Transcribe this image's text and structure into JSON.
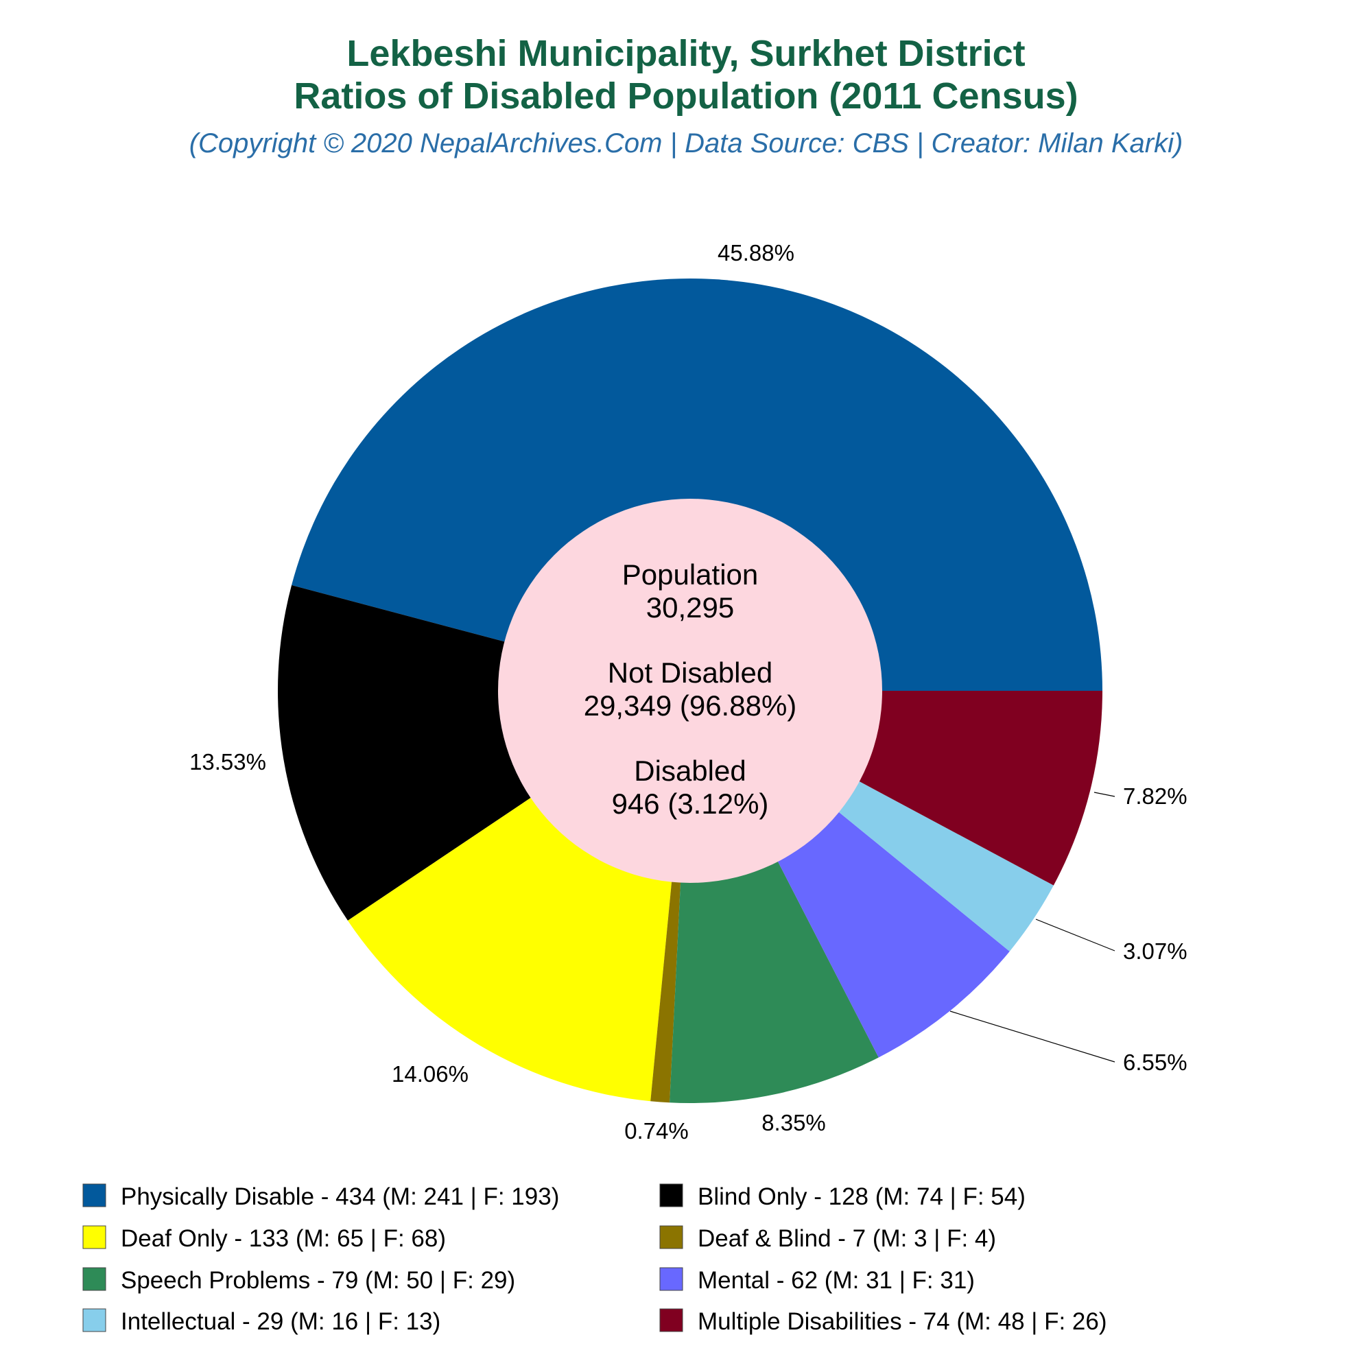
{
  "title_line1": "Lekbeshi Municipality, Surkhet District",
  "title_line2": "Ratios of Disabled Population (2011 Census)",
  "subtitle": "(Copyright © 2020 NepalArchives.Com | Data Source: CBS | Creator: Milan Karki)",
  "center": {
    "population_label": "Population",
    "population_value": "30,295",
    "not_disabled_label": "Not Disabled",
    "not_disabled_value": "29,349 (96.88%)",
    "disabled_label": "Disabled",
    "disabled_value": "946 (3.12%)",
    "fill": "#fdd7df"
  },
  "chart_data": {
    "type": "pie",
    "slices": [
      {
        "name": "Physically Disable",
        "value": 434,
        "male": 241,
        "female": 193,
        "label": "45.88%",
        "color": "#02599c",
        "legend": "Physically Disable - 434 (M: 241 | F: 193)"
      },
      {
        "name": "Blind Only",
        "value": 128,
        "male": 74,
        "female": 54,
        "label": "13.53%",
        "color": "#000000",
        "legend": "Blind Only - 128 (M: 74 | F: 54)"
      },
      {
        "name": "Deaf Only",
        "value": 133,
        "male": 65,
        "female": 68,
        "label": "14.06%",
        "color": "#ffff00",
        "legend": "Deaf Only - 133 (M: 65 | F: 68)"
      },
      {
        "name": "Deaf & Blind",
        "value": 7,
        "male": 3,
        "female": 4,
        "label": "0.74%",
        "color": "#8b7400",
        "legend": "Deaf & Blind - 7 (M: 3 | F: 4)"
      },
      {
        "name": "Speech Problems",
        "value": 79,
        "male": 50,
        "female": 29,
        "label": "8.35%",
        "color": "#2e8b57",
        "legend": "Speech Problems - 79 (M: 50 | F: 29)"
      },
      {
        "name": "Mental",
        "value": 62,
        "male": 31,
        "female": 31,
        "label": "6.55%",
        "color": "#6868ff",
        "legend": "Mental - 62 (M: 31 | F: 31)"
      },
      {
        "name": "Intellectual",
        "value": 29,
        "male": 16,
        "female": 13,
        "label": "3.07%",
        "color": "#87ceeb",
        "legend": "Intellectual - 29 (M: 16 | F: 13)"
      },
      {
        "name": "Multiple Disabilities",
        "value": 74,
        "male": 48,
        "female": 26,
        "label": "7.82%",
        "color": "#800020",
        "legend": "Multiple Disabilities - 74 (M: 48 | F: 26)"
      }
    ],
    "legend_order": [
      "Physically Disable",
      "Blind Only",
      "Deaf Only",
      "Deaf & Blind",
      "Speech Problems",
      "Mental",
      "Intellectual",
      "Multiple Disabilities"
    ]
  }
}
